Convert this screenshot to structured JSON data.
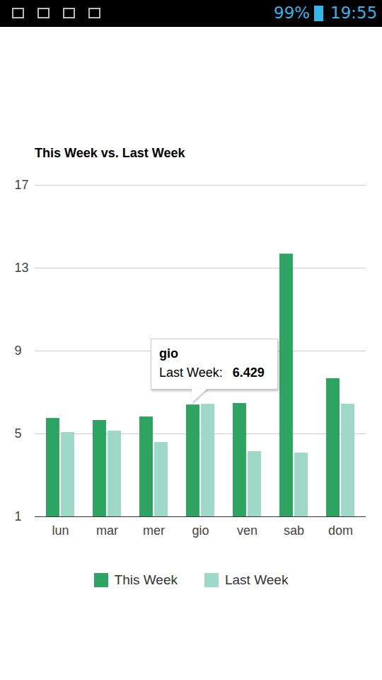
{
  "status_bar": {
    "battery": "99%",
    "time": "19:55"
  },
  "chart_data": {
    "type": "bar",
    "title": "This Week vs. Last Week",
    "categories": [
      "lun",
      "mar",
      "mer",
      "gio",
      "ven",
      "sab",
      "dom"
    ],
    "series": [
      {
        "name": "This Week",
        "color": "#2ea462",
        "values": [
          5.75,
          5.65,
          5.82,
          6.4,
          6.47,
          13.68,
          7.67
        ]
      },
      {
        "name": "Last Week",
        "color": "#9ed9c8",
        "values": [
          5.07,
          5.14,
          4.59,
          6.429,
          4.15,
          4.08,
          6.44
        ]
      }
    ],
    "ylim": [
      1,
      17
    ],
    "yticks": [
      1,
      5,
      9,
      13,
      17
    ],
    "grid": true,
    "legend": "bottom",
    "annotations": [
      {
        "category": "gio",
        "series": "Last Week",
        "label": "Last Week:",
        "value": 6.429
      }
    ]
  }
}
